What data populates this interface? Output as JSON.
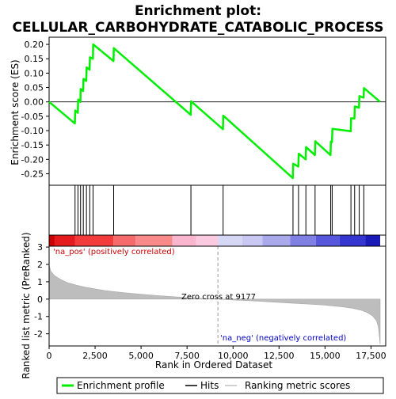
{
  "chart_data": {
    "type": "line",
    "title_line1": "Enrichment plot:",
    "title_line2": "CELLULAR_CARBOHYDRATE_CATABOLIC_PROCESS",
    "top_panel": {
      "ylabel": "Enrichment score (ES)",
      "ylim": [
        -0.29,
        0.225
      ],
      "yticks": [
        "0.20",
        "0.15",
        "0.10",
        "0.05",
        "0.00",
        "-0.05",
        "-0.10",
        "-0.15",
        "-0.20",
        "-0.25"
      ],
      "ytick_values": [
        0.2,
        0.15,
        0.1,
        0.05,
        0.0,
        -0.05,
        -0.1,
        -0.15,
        -0.2,
        -0.25
      ],
      "series_name": "Enrichment profile",
      "color": "#00ee00",
      "x": [
        0,
        1400,
        1420,
        1560,
        1580,
        1700,
        1720,
        1850,
        1870,
        2020,
        2040,
        2200,
        2220,
        2380,
        2400,
        3500,
        3520,
        7700,
        7720,
        9450,
        9470,
        13250,
        13270,
        13550,
        13570,
        13950,
        13970,
        14450,
        14470,
        15300,
        15320,
        15380,
        15400,
        16400,
        16420,
        16600,
        16620,
        16850,
        16870,
        17100,
        17120,
        18000
      ],
      "y": [
        0.0,
        -0.075,
        -0.03,
        -0.038,
        0.008,
        0.0,
        0.045,
        0.038,
        0.08,
        0.073,
        0.12,
        0.112,
        0.155,
        0.15,
        0.2,
        0.142,
        0.187,
        -0.045,
        0.002,
        -0.095,
        -0.048,
        -0.265,
        -0.215,
        -0.225,
        -0.18,
        -0.2,
        -0.157,
        -0.185,
        -0.137,
        -0.185,
        -0.138,
        -0.14,
        -0.094,
        -0.102,
        -0.057,
        -0.058,
        -0.016,
        -0.02,
        0.02,
        0.015,
        0.048,
        0.0
      ],
      "hits": [
        1410,
        1570,
        1710,
        1860,
        2030,
        2210,
        2390,
        3510,
        7710,
        9460,
        13260,
        13560,
        13960,
        14460,
        15310,
        15390,
        16410,
        16610,
        16860,
        17110
      ]
    },
    "bottom_panel": {
      "ylabel": "Ranked list metric (PreRanked)",
      "xlabel": "Rank in Ordered Dataset",
      "ylim": [
        -2.7,
        3.05
      ],
      "yticks": [
        "3",
        "2",
        "1",
        "0",
        "-1",
        "-2"
      ],
      "ytick_values": [
        3,
        2,
        1,
        0,
        -1,
        -2
      ],
      "xlim": [
        0,
        18300
      ],
      "xticks": [
        "0",
        "2,500",
        "5,000",
        "7,500",
        "10,000",
        "12,500",
        "15,000",
        "17,500"
      ],
      "xtick_values": [
        0,
        2500,
        5000,
        7500,
        10000,
        12500,
        15000,
        17500
      ],
      "zero_cross_label": "Zero cross at 9177",
      "zero_cross": 9177,
      "pos_label": "'na_pos' (positively correlated)",
      "neg_label": "'na_neg' (negatively correlated)",
      "pos_label_color": "#cc0000",
      "neg_label_color": "#0000cc",
      "metric_x": [
        0,
        100,
        300,
        600,
        1000,
        1500,
        2000,
        3000,
        4000,
        5000,
        6000,
        7000,
        8000,
        9177,
        10000,
        11000,
        12000,
        13000,
        14000,
        15000,
        16000,
        16500,
        17000,
        17300,
        17600,
        17800,
        17900,
        17950,
        18000
      ],
      "metric_y": [
        1.95,
        1.6,
        1.35,
        1.15,
        0.95,
        0.8,
        0.68,
        0.5,
        0.38,
        0.28,
        0.2,
        0.12,
        0.05,
        0.0,
        -0.05,
        -0.1,
        -0.16,
        -0.22,
        -0.28,
        -0.35,
        -0.45,
        -0.53,
        -0.65,
        -0.78,
        -0.98,
        -1.25,
        -1.6,
        -2.1,
        -2.6
      ]
    },
    "legend": [
      {
        "label": "Enrichment profile",
        "color": "#00ee00"
      },
      {
        "label": "Hits",
        "color": "#000000"
      },
      {
        "label": "Ranking metric scores",
        "color": "#c0c0c0"
      }
    ]
  }
}
